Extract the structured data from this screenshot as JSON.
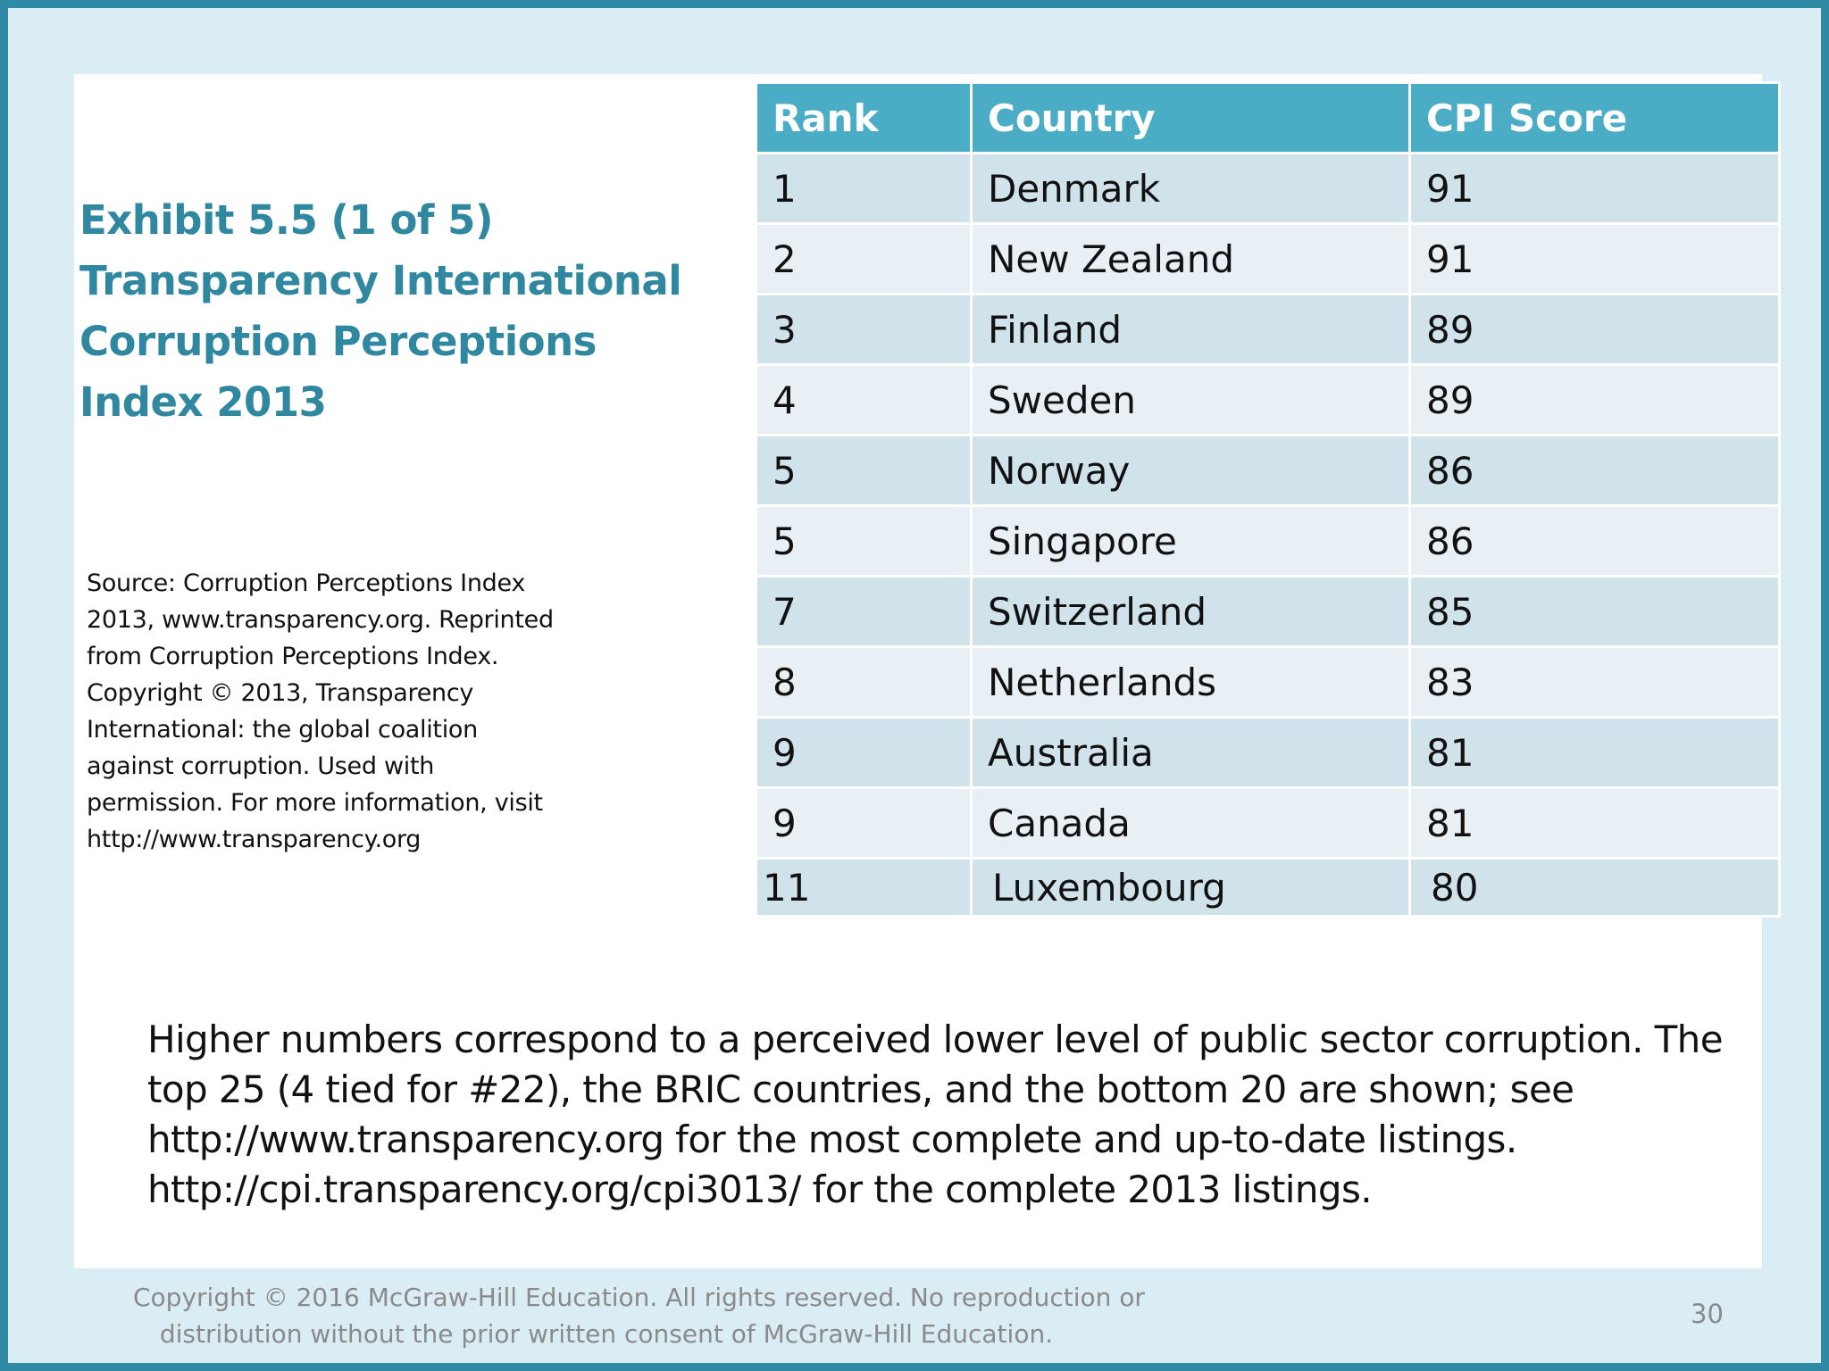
{
  "title": {
    "lines": [
      "Exhibit 5.5  (1 of 5)",
      "Transparency International",
      "Corruption Perceptions",
      "Index 2013"
    ]
  },
  "source": {
    "lines": [
      "Source: Corruption Perceptions Index",
      "2013, www.transparency.org. Reprinted",
      "from Corruption Perceptions Index.",
      "Copyright © 2013, Transparency",
      "International: the global coalition",
      "against corruption. Used with",
      "permission. For more information, visit",
      "http://www.transparency.org"
    ]
  },
  "table": {
    "headers": [
      "Rank",
      "Country",
      "CPI Score"
    ],
    "rows": [
      [
        "1",
        "Denmark",
        "91"
      ],
      [
        "2",
        "New Zealand",
        "91"
      ],
      [
        "3",
        "Finland",
        "89"
      ],
      [
        "4",
        "Sweden",
        "89"
      ],
      [
        "5",
        "Norway",
        "86"
      ],
      [
        "5",
        "Singapore",
        "86"
      ],
      [
        "7",
        "Switzerland",
        "85"
      ],
      [
        "8",
        "Netherlands",
        "83"
      ],
      [
        "9",
        "Australia",
        "81"
      ],
      [
        "9",
        "Canada",
        "81"
      ],
      [
        "11",
        "Luxembourg",
        "80"
      ]
    ]
  },
  "note": {
    "lines": [
      "Higher numbers correspond to a perceived lower level of public sector corruption. The",
      "top 25 (4 tied for #22), the BRIC countries, and the bottom 20 are shown; see",
      "http://www.transparency.org for the most complete and up-to-date listings.",
      "http://cpi.transparency.org/cpi3013/ for the complete 2013 listings."
    ]
  },
  "footer": {
    "copyright_lines": [
      "Copyright © 2016 McGraw-Hill Education. All rights reserved. No reproduction or",
      "distribution without the prior written consent of McGraw-Hill Education."
    ],
    "page_number": "30"
  },
  "colors": {
    "frame": "#2f8aa6",
    "background": "#dbedf4",
    "title": "#2f87a0",
    "header_fill": "#4bacc6",
    "row_fill_dark": "#d0e3ea",
    "row_fill_light": "#e8f0f6",
    "footer_text": "#8a8a8a"
  }
}
